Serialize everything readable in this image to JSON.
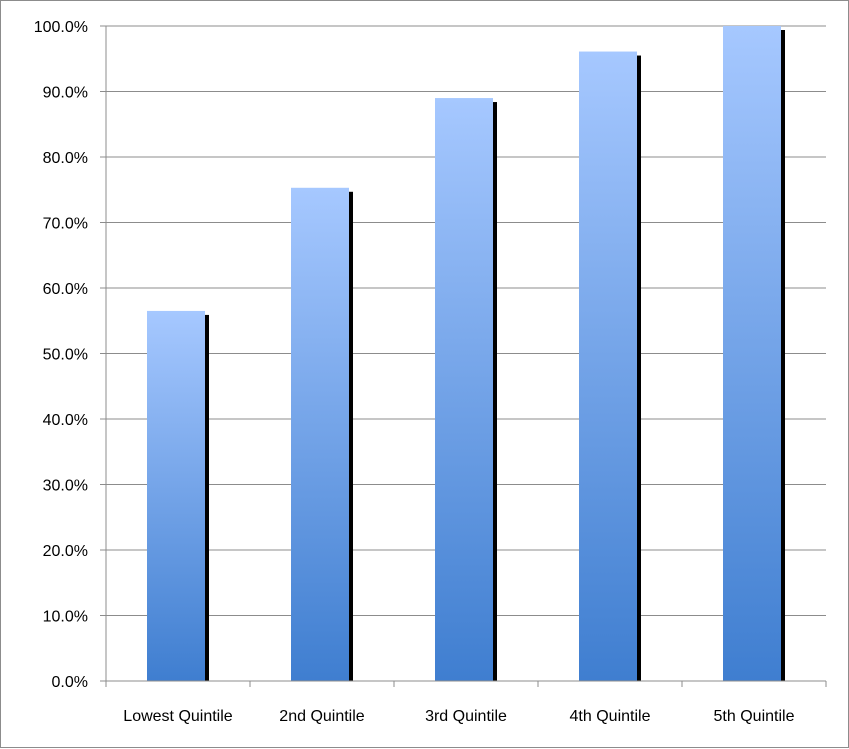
{
  "chart_data": {
    "type": "bar",
    "categories": [
      "Lowest Quintile",
      "2nd Quintile",
      "3rd Quintile",
      "4th Quintile",
      "5th Quintile"
    ],
    "values": [
      56.5,
      75.3,
      89.0,
      96.1,
      100.0
    ],
    "y_tick_labels": [
      "0.0%",
      "10.0%",
      "20.0%",
      "30.0%",
      "40.0%",
      "50.0%",
      "60.0%",
      "70.0%",
      "80.0%",
      "90.0%",
      "100.0%"
    ],
    "ylim": [
      0,
      100
    ],
    "y_tick_step": 10,
    "grid": true,
    "legend": "none",
    "colors": {
      "bar_top": "#a6c8ff",
      "bar_bottom": "#3f7ed0",
      "bar_shadow": "#000000",
      "gridline": "#8c8c8c",
      "axis": "#8c8c8c"
    }
  }
}
